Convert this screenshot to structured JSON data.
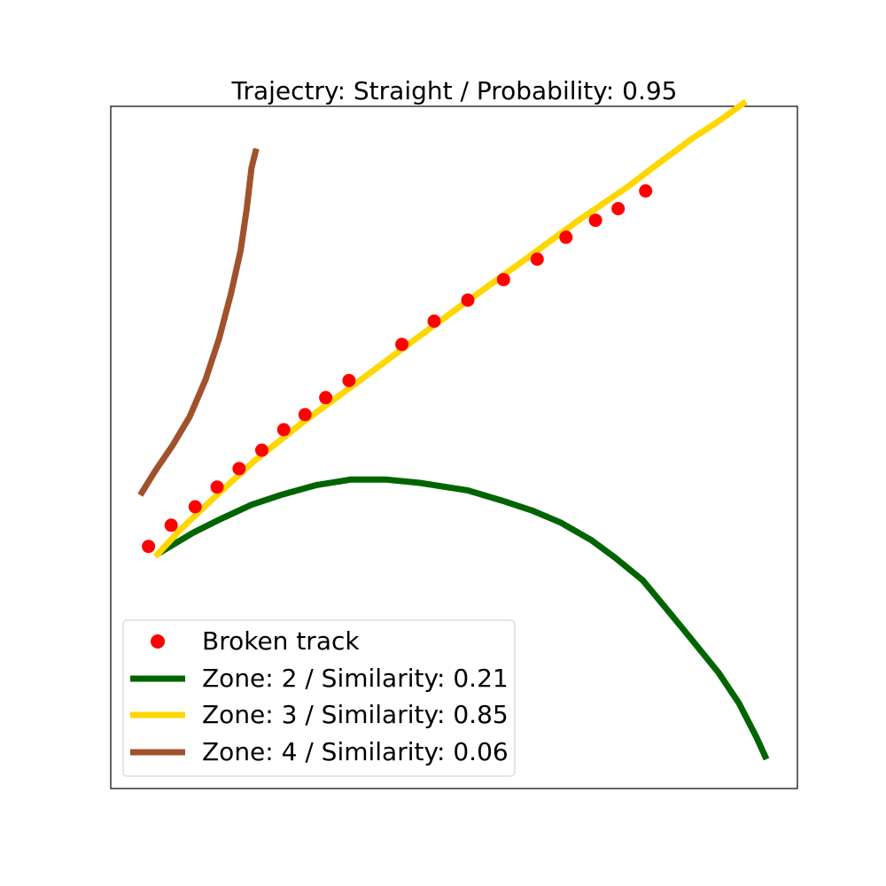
{
  "chart_data": {
    "type": "line",
    "title": "Trajectry: Straight / Probability: 0.95",
    "xlabel": "",
    "ylabel": "",
    "xlim": [
      0,
      100
    ],
    "ylim": [
      0,
      100
    ],
    "axis_ticks_visible": false,
    "grid": false,
    "legend_position": "lower-left",
    "series": [
      {
        "name": "Broken track",
        "kind": "scatter",
        "color": "#ff0000",
        "marker": "circle",
        "x": [
          5.5,
          8.8,
          12.3,
          15.5,
          18.7,
          22.0,
          25.2,
          28.3,
          31.3,
          34.7,
          42.4,
          47.1,
          52.0,
          57.2,
          62.1,
          66.3,
          70.6,
          73.9,
          77.9
        ],
        "y": [
          35.5,
          38.6,
          41.3,
          44.2,
          46.9,
          49.6,
          52.6,
          54.8,
          57.3,
          59.8,
          65.1,
          68.5,
          71.6,
          74.6,
          77.6,
          80.8,
          83.3,
          85.0,
          87.6
        ]
      },
      {
        "name": "Zone: 2 / Similarity: 0.21",
        "kind": "line",
        "color": "#006400",
        "x": [
          7.0,
          12.0,
          16.0,
          20.5,
          25.0,
          30.0,
          35.0,
          40.0,
          45.0,
          52.0,
          57.0,
          61.5,
          65.5,
          70.0,
          73.5,
          77.5,
          83.0,
          88.5,
          91.5,
          94.0,
          95.5
        ],
        "y": [
          34.5,
          37.5,
          39.5,
          41.6,
          43.1,
          44.5,
          45.3,
          45.3,
          44.8,
          43.7,
          42.2,
          40.7,
          39.0,
          36.4,
          33.8,
          30.5,
          23.8,
          17.0,
          12.5,
          7.6,
          4.3
        ]
      },
      {
        "name": "Zone: 3 / Similarity: 0.85",
        "kind": "line",
        "color": "#ffd700",
        "x": [
          6.5,
          10.0,
          15.0,
          21.0,
          28.0,
          36.0,
          44.0,
          52.0,
          60.0,
          68.0,
          75.0,
          80.0,
          85.0,
          88.5,
          92.5
        ],
        "y": [
          34.0,
          37.8,
          42.6,
          48.1,
          53.7,
          59.6,
          65.6,
          71.5,
          77.3,
          83.2,
          88.0,
          91.8,
          95.5,
          97.8,
          100.7
        ]
      },
      {
        "name": "Zone: 4 / Similarity: 0.06",
        "kind": "line",
        "color": "#a0522d",
        "x": [
          4.3,
          6.5,
          9.0,
          11.5,
          13.8,
          15.8,
          17.5,
          18.9,
          19.8,
          20.5,
          21.2
        ],
        "y": [
          43.0,
          46.6,
          50.3,
          54.5,
          59.9,
          66.0,
          72.5,
          78.8,
          85.0,
          91.0,
          93.8
        ]
      }
    ]
  }
}
